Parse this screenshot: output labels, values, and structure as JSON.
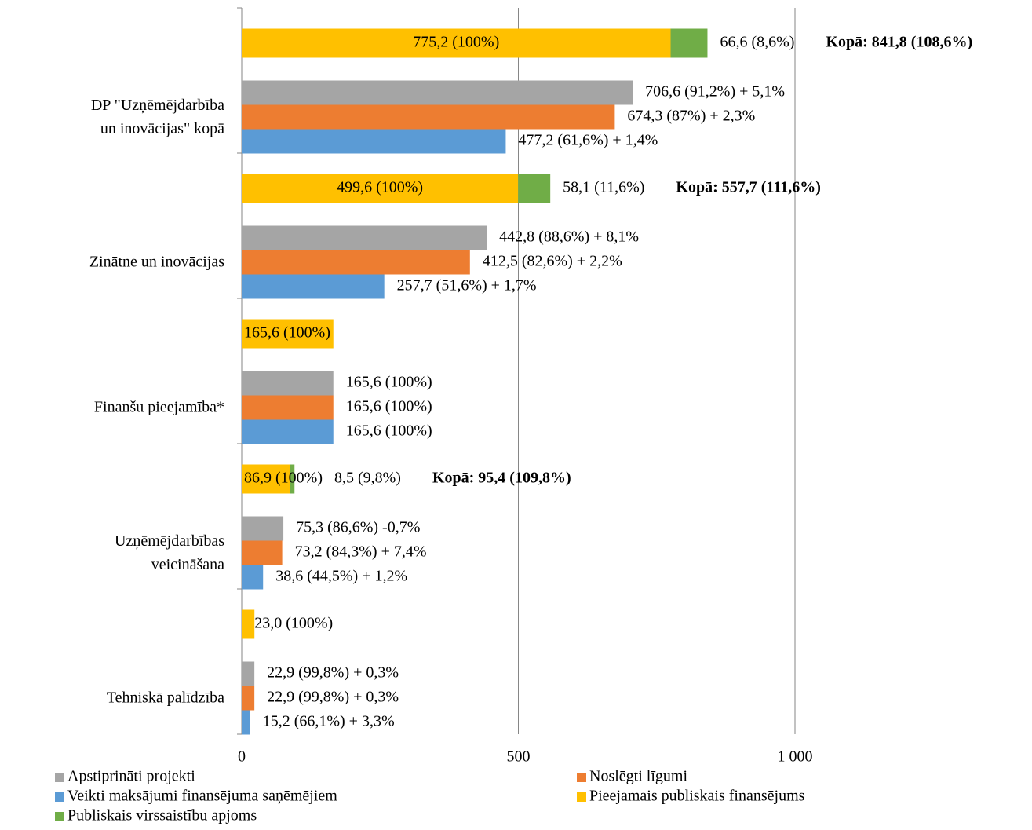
{
  "chart_data": {
    "type": "bar",
    "categories": [
      "DP \"Uzņēmējdarbība un inovācijas\" kopā",
      "Zinātne un inovācijas",
      "Finanšu pieejamība*",
      "Uzņēmējdarbības veicināšana",
      "Tehniskā palīdzība"
    ],
    "series": [
      {
        "name": "Apstiprināti projekti",
        "color": "#a5a5a5",
        "values": [
          706.6,
          442.8,
          165.6,
          75.3,
          22.9
        ],
        "value_labels": [
          "706,6 (91,2%) + 5,1%",
          "442,8 (88,6%) + 8,1%",
          "165,6 (100%)",
          "75,3 (86,6%) -0,7%",
          "22,9 (99,8%) + 0,3%"
        ]
      },
      {
        "name": "Noslēgti līgumi",
        "color": "#ed7d31",
        "values": [
          674.3,
          412.5,
          165.6,
          73.2,
          22.9
        ],
        "value_labels": [
          "674,3 (87%) + 2,3%",
          "412,5 (82,6%) + 2,2%",
          "165,6 (100%)",
          "73,2 (84,3%) + 7,4%",
          "22,9 (99,8%) + 0,3%"
        ]
      },
      {
        "name": "Veikti maksājumi finansējuma saņēmējiem",
        "color": "#5b9bd5",
        "values": [
          477.2,
          257.7,
          165.6,
          38.6,
          15.2
        ],
        "value_labels": [
          "477,2 (61,6%) + 1,4%",
          "257,7 (51,6%) + 1,7%",
          "165,6 (100%)",
          "38,6 (44,5%) + 1,2%",
          "15,2 (66,1%) + 3,3%"
        ]
      },
      {
        "name": "Pieejamais publiskais finansējums",
        "color": "#ffc000",
        "values": [
          775.2,
          499.6,
          165.6,
          86.9,
          23.0
        ],
        "value_labels": [
          "775,2 (100%)",
          "499,6 (100%)",
          "165,6 (100%)",
          "86,9 (100%)",
          "23,0 (100%)"
        ]
      },
      {
        "name": "Publiskais virssaistību apjoms",
        "color": "#70ad47",
        "values": [
          66.6,
          58.1,
          null,
          8.5,
          null
        ],
        "value_labels": [
          "66,6 (8,6%)",
          "58,1 (11,6%)",
          null,
          "8,5 (9,8%)",
          null
        ]
      }
    ],
    "totals": [
      "Kopā: 841,8 (108,6%)",
      "Kopā: 557,7 (111,6%)",
      null,
      "Kopā: 95,4 (109,8%)",
      null
    ],
    "xlim": [
      0,
      1000
    ],
    "xticks": [
      0,
      500,
      {
        "value": 1000,
        "label": "1 000"
      }
    ],
    "grid": true
  }
}
